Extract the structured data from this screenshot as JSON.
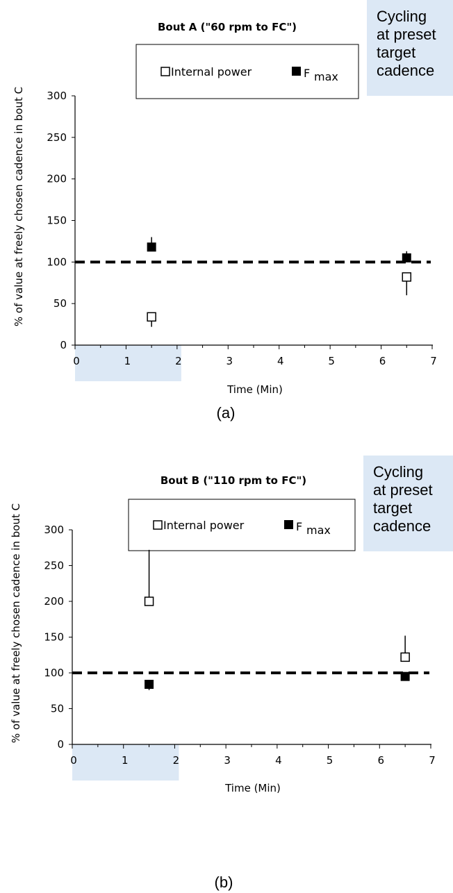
{
  "shade_color": "#dce8f5",
  "chart_data": [
    {
      "type": "scatter",
      "title": "Bout A (\"60 rpm to FC\")",
      "caption": "(a)",
      "xlabel": "Time (Min)",
      "ylabel": "% of value at freely chosen cadence in bout C",
      "xlim": [
        0,
        7
      ],
      "ylim": [
        0,
        300
      ],
      "xticks": [
        "0",
        "1",
        "2",
        "3",
        "4",
        "5",
        "6",
        "7"
      ],
      "yticks": [
        "0",
        "50",
        "100",
        "150",
        "200",
        "250",
        "300"
      ],
      "reference_line": {
        "y": 100,
        "style": "dashed"
      },
      "shaded_interval": {
        "x": [
          0,
          2
        ],
        "label_lines": [
          "Cycling",
          "at preset",
          "target",
          "cadence"
        ]
      },
      "legend": {
        "position": "top",
        "entries": [
          {
            "label": "Internal power",
            "marker": "open-square"
          },
          {
            "label": "F",
            "sub": "max",
            "marker": "filled-square"
          }
        ]
      },
      "series": [
        {
          "name": "Internal power",
          "marker": "open-square",
          "x": [
            1.5,
            6.5
          ],
          "values": [
            34,
            82
          ],
          "error_down": [
            12,
            22
          ],
          "error_up": [
            0,
            0
          ]
        },
        {
          "name": "Fmax",
          "marker": "filled-square",
          "x": [
            1.5,
            6.5
          ],
          "values": [
            118,
            105
          ],
          "error_down": [
            0,
            0
          ],
          "error_up": [
            12,
            8
          ]
        }
      ]
    },
    {
      "type": "scatter",
      "title": "Bout B (\"110 rpm to FC\")",
      "caption": "(b)",
      "xlabel": "Time (Min)",
      "ylabel": "% of value at freely chosen cadence in bout C",
      "xlim": [
        0,
        7
      ],
      "ylim": [
        0,
        300
      ],
      "xticks": [
        "0",
        "1",
        "2",
        "3",
        "4",
        "5",
        "6",
        "7"
      ],
      "yticks": [
        "0",
        "50",
        "100",
        "150",
        "200",
        "250",
        "300"
      ],
      "reference_line": {
        "y": 100,
        "style": "dashed"
      },
      "shaded_interval": {
        "x": [
          0,
          2
        ],
        "label_lines": [
          "Cycling",
          "at preset",
          "target",
          "cadence"
        ]
      },
      "legend": {
        "position": "top",
        "entries": [
          {
            "label": "Internal power",
            "marker": "open-square"
          },
          {
            "label": "F",
            "sub": "max",
            "marker": "filled-square"
          }
        ]
      },
      "series": [
        {
          "name": "Internal power",
          "marker": "open-square",
          "x": [
            1.5,
            6.5
          ],
          "values": [
            200,
            122
          ],
          "error_down": [
            0,
            0
          ],
          "error_up": [
            72,
            30
          ]
        },
        {
          "name": "Fmax",
          "marker": "filled-square",
          "x": [
            1.5,
            6.5
          ],
          "values": [
            84,
            95
          ],
          "error_down": [
            8,
            0
          ],
          "error_up": [
            0,
            0
          ]
        }
      ]
    }
  ]
}
